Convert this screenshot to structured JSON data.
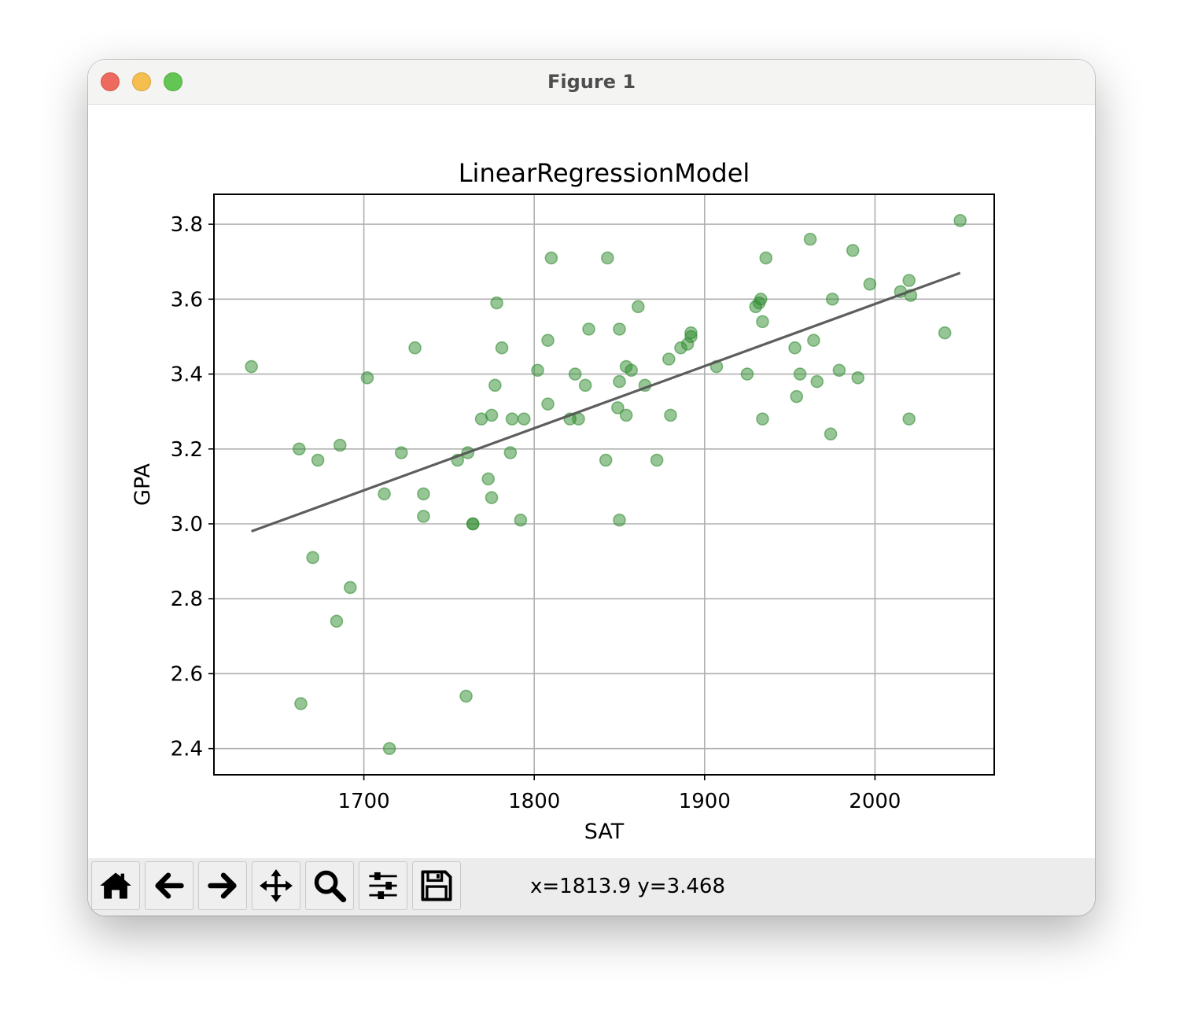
{
  "window": {
    "title": "Figure 1"
  },
  "toolbar": {
    "buttons": [
      {
        "name": "home",
        "icon": "home-icon"
      },
      {
        "name": "back",
        "icon": "arrow-left-icon"
      },
      {
        "name": "forward",
        "icon": "arrow-right-icon"
      },
      {
        "name": "pan",
        "icon": "move-icon"
      },
      {
        "name": "zoom",
        "icon": "magnifier-icon"
      },
      {
        "name": "configure",
        "icon": "sliders-icon"
      },
      {
        "name": "save",
        "icon": "floppy-disk-icon"
      }
    ],
    "coords": "x=1813.9 y=3.468"
  },
  "chart_data": {
    "type": "scatter",
    "title": "LinearRegressionModel",
    "xlabel": "SAT",
    "ylabel": "GPA",
    "xlim": [
      1612,
      2070
    ],
    "ylim": [
      2.33,
      3.88
    ],
    "xticks": [
      1700,
      1800,
      1900,
      2000
    ],
    "yticks": [
      2.4,
      2.6,
      2.8,
      3.0,
      3.2,
      3.4,
      3.6,
      3.8
    ],
    "xtick_labels": [
      "1700",
      "1800",
      "1900",
      "2000"
    ],
    "ytick_labels": [
      "2.4",
      "2.6",
      "2.8",
      "3.0",
      "3.2",
      "3.4",
      "3.6",
      "3.8"
    ],
    "grid": true,
    "point_color": "#2e8b2e",
    "line_color": "#555555",
    "points": [
      [
        1634,
        3.42
      ],
      [
        1662,
        3.2
      ],
      [
        1663,
        2.52
      ],
      [
        1670,
        2.91
      ],
      [
        1673,
        3.17
      ],
      [
        1684,
        2.74
      ],
      [
        1686,
        3.21
      ],
      [
        1692,
        2.83
      ],
      [
        1702,
        3.39
      ],
      [
        1712,
        3.08
      ],
      [
        1715,
        2.4
      ],
      [
        1722,
        3.19
      ],
      [
        1730,
        3.47
      ],
      [
        1735,
        3.08
      ],
      [
        1735,
        3.02
      ],
      [
        1755,
        3.17
      ],
      [
        1760,
        2.54
      ],
      [
        1761,
        3.19
      ],
      [
        1764,
        3.0
      ],
      [
        1764,
        3.0
      ],
      [
        1769,
        3.28
      ],
      [
        1773,
        3.12
      ],
      [
        1775,
        3.29
      ],
      [
        1775,
        3.07
      ],
      [
        1777,
        3.37
      ],
      [
        1778,
        3.59
      ],
      [
        1781,
        3.47
      ],
      [
        1786,
        3.19
      ],
      [
        1787,
        3.28
      ],
      [
        1792,
        3.01
      ],
      [
        1794,
        3.28
      ],
      [
        1802,
        3.41
      ],
      [
        1808,
        3.49
      ],
      [
        1808,
        3.32
      ],
      [
        1810,
        3.71
      ],
      [
        1821,
        3.28
      ],
      [
        1824,
        3.4
      ],
      [
        1826,
        3.28
      ],
      [
        1830,
        3.37
      ],
      [
        1832,
        3.52
      ],
      [
        1842,
        3.17
      ],
      [
        1843,
        3.71
      ],
      [
        1849,
        3.31
      ],
      [
        1850,
        3.52
      ],
      [
        1850,
        3.38
      ],
      [
        1850,
        3.01
      ],
      [
        1854,
        3.29
      ],
      [
        1854,
        3.42
      ],
      [
        1857,
        3.41
      ],
      [
        1861,
        3.58
      ],
      [
        1865,
        3.37
      ],
      [
        1872,
        3.17
      ],
      [
        1879,
        3.44
      ],
      [
        1880,
        3.29
      ],
      [
        1886,
        3.47
      ],
      [
        1890,
        3.48
      ],
      [
        1892,
        3.5
      ],
      [
        1892,
        3.51
      ],
      [
        1907,
        3.42
      ],
      [
        1925,
        3.4
      ],
      [
        1930,
        3.58
      ],
      [
        1932,
        3.59
      ],
      [
        1933,
        3.6
      ],
      [
        1934,
        3.54
      ],
      [
        1934,
        3.28
      ],
      [
        1936,
        3.71
      ],
      [
        1953,
        3.47
      ],
      [
        1954,
        3.34
      ],
      [
        1956,
        3.4
      ],
      [
        1962,
        3.76
      ],
      [
        1964,
        3.49
      ],
      [
        1966,
        3.38
      ],
      [
        1974,
        3.24
      ],
      [
        1975,
        3.6
      ],
      [
        1979,
        3.41
      ],
      [
        1987,
        3.73
      ],
      [
        1990,
        3.39
      ],
      [
        1997,
        3.64
      ],
      [
        2015,
        3.62
      ],
      [
        2020,
        3.65
      ],
      [
        2020,
        3.28
      ],
      [
        2021,
        3.61
      ],
      [
        2041,
        3.51
      ],
      [
        2050,
        3.81
      ]
    ],
    "regression_line": [
      [
        1634,
        2.98
      ],
      [
        2050,
        3.67
      ]
    ]
  }
}
